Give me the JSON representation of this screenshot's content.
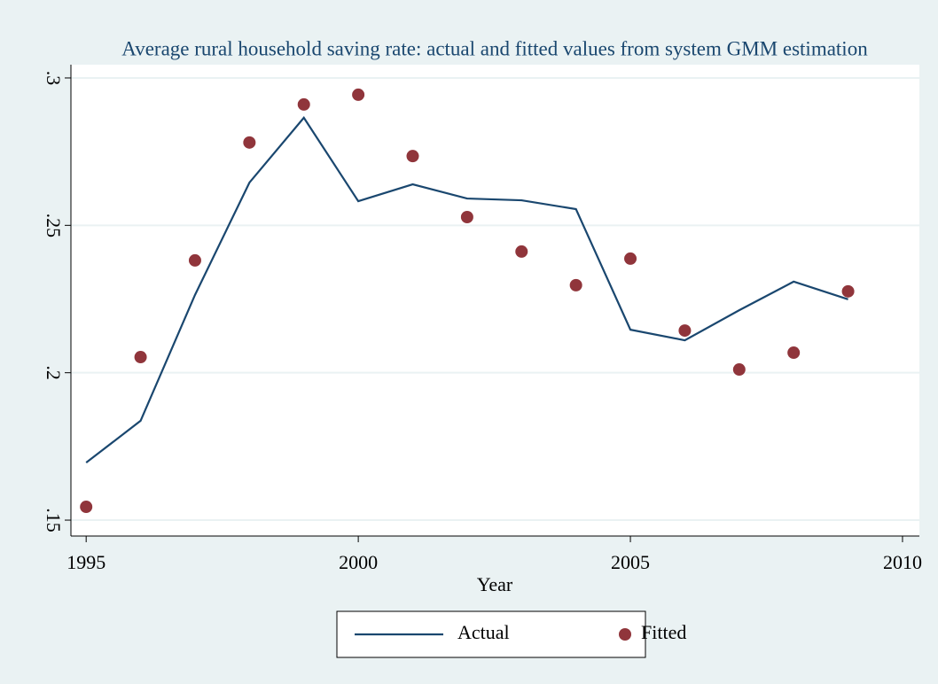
{
  "chart_data": {
    "type": "line",
    "title": "Average rural household saving rate: actual and fitted values from system GMM estimation",
    "x_label": "Year",
    "x": [
      1995,
      1996,
      1997,
      1998,
      1999,
      2000,
      2001,
      2002,
      2003,
      2004,
      2005,
      2006,
      2007,
      2008,
      2009
    ],
    "series": [
      {
        "name": "Actual",
        "style": "line",
        "color": "#1a476f",
        "values": [
          0.1695,
          0.1837,
          0.2264,
          0.2645,
          0.2865,
          0.2582,
          0.2639,
          0.2591,
          0.2585,
          0.2555,
          0.2146,
          0.211,
          0.2212,
          0.2309,
          0.2249
        ]
      },
      {
        "name": "Fitted",
        "style": "markers",
        "color": "#90353b",
        "values": [
          0.1545,
          0.2053,
          0.2381,
          0.2781,
          0.291,
          0.2943,
          0.2735,
          0.2528,
          0.2411,
          0.2297,
          0.2387,
          0.2143,
          0.2011,
          0.2068,
          0.2276
        ]
      }
    ],
    "xlim": [
      1994.72,
      2010.31
    ],
    "ylim": [
      0.1446,
      0.3045
    ],
    "xticks": [
      1995,
      2000,
      2005,
      2010
    ],
    "yticks": [
      {
        "value": 0.15,
        "label": ".15"
      },
      {
        "value": 0.2,
        "label": ".2"
      },
      {
        "value": 0.25,
        "label": ".25"
      },
      {
        "value": 0.3,
        "label": ".3"
      }
    ],
    "grid": true,
    "legend": "bottom"
  }
}
